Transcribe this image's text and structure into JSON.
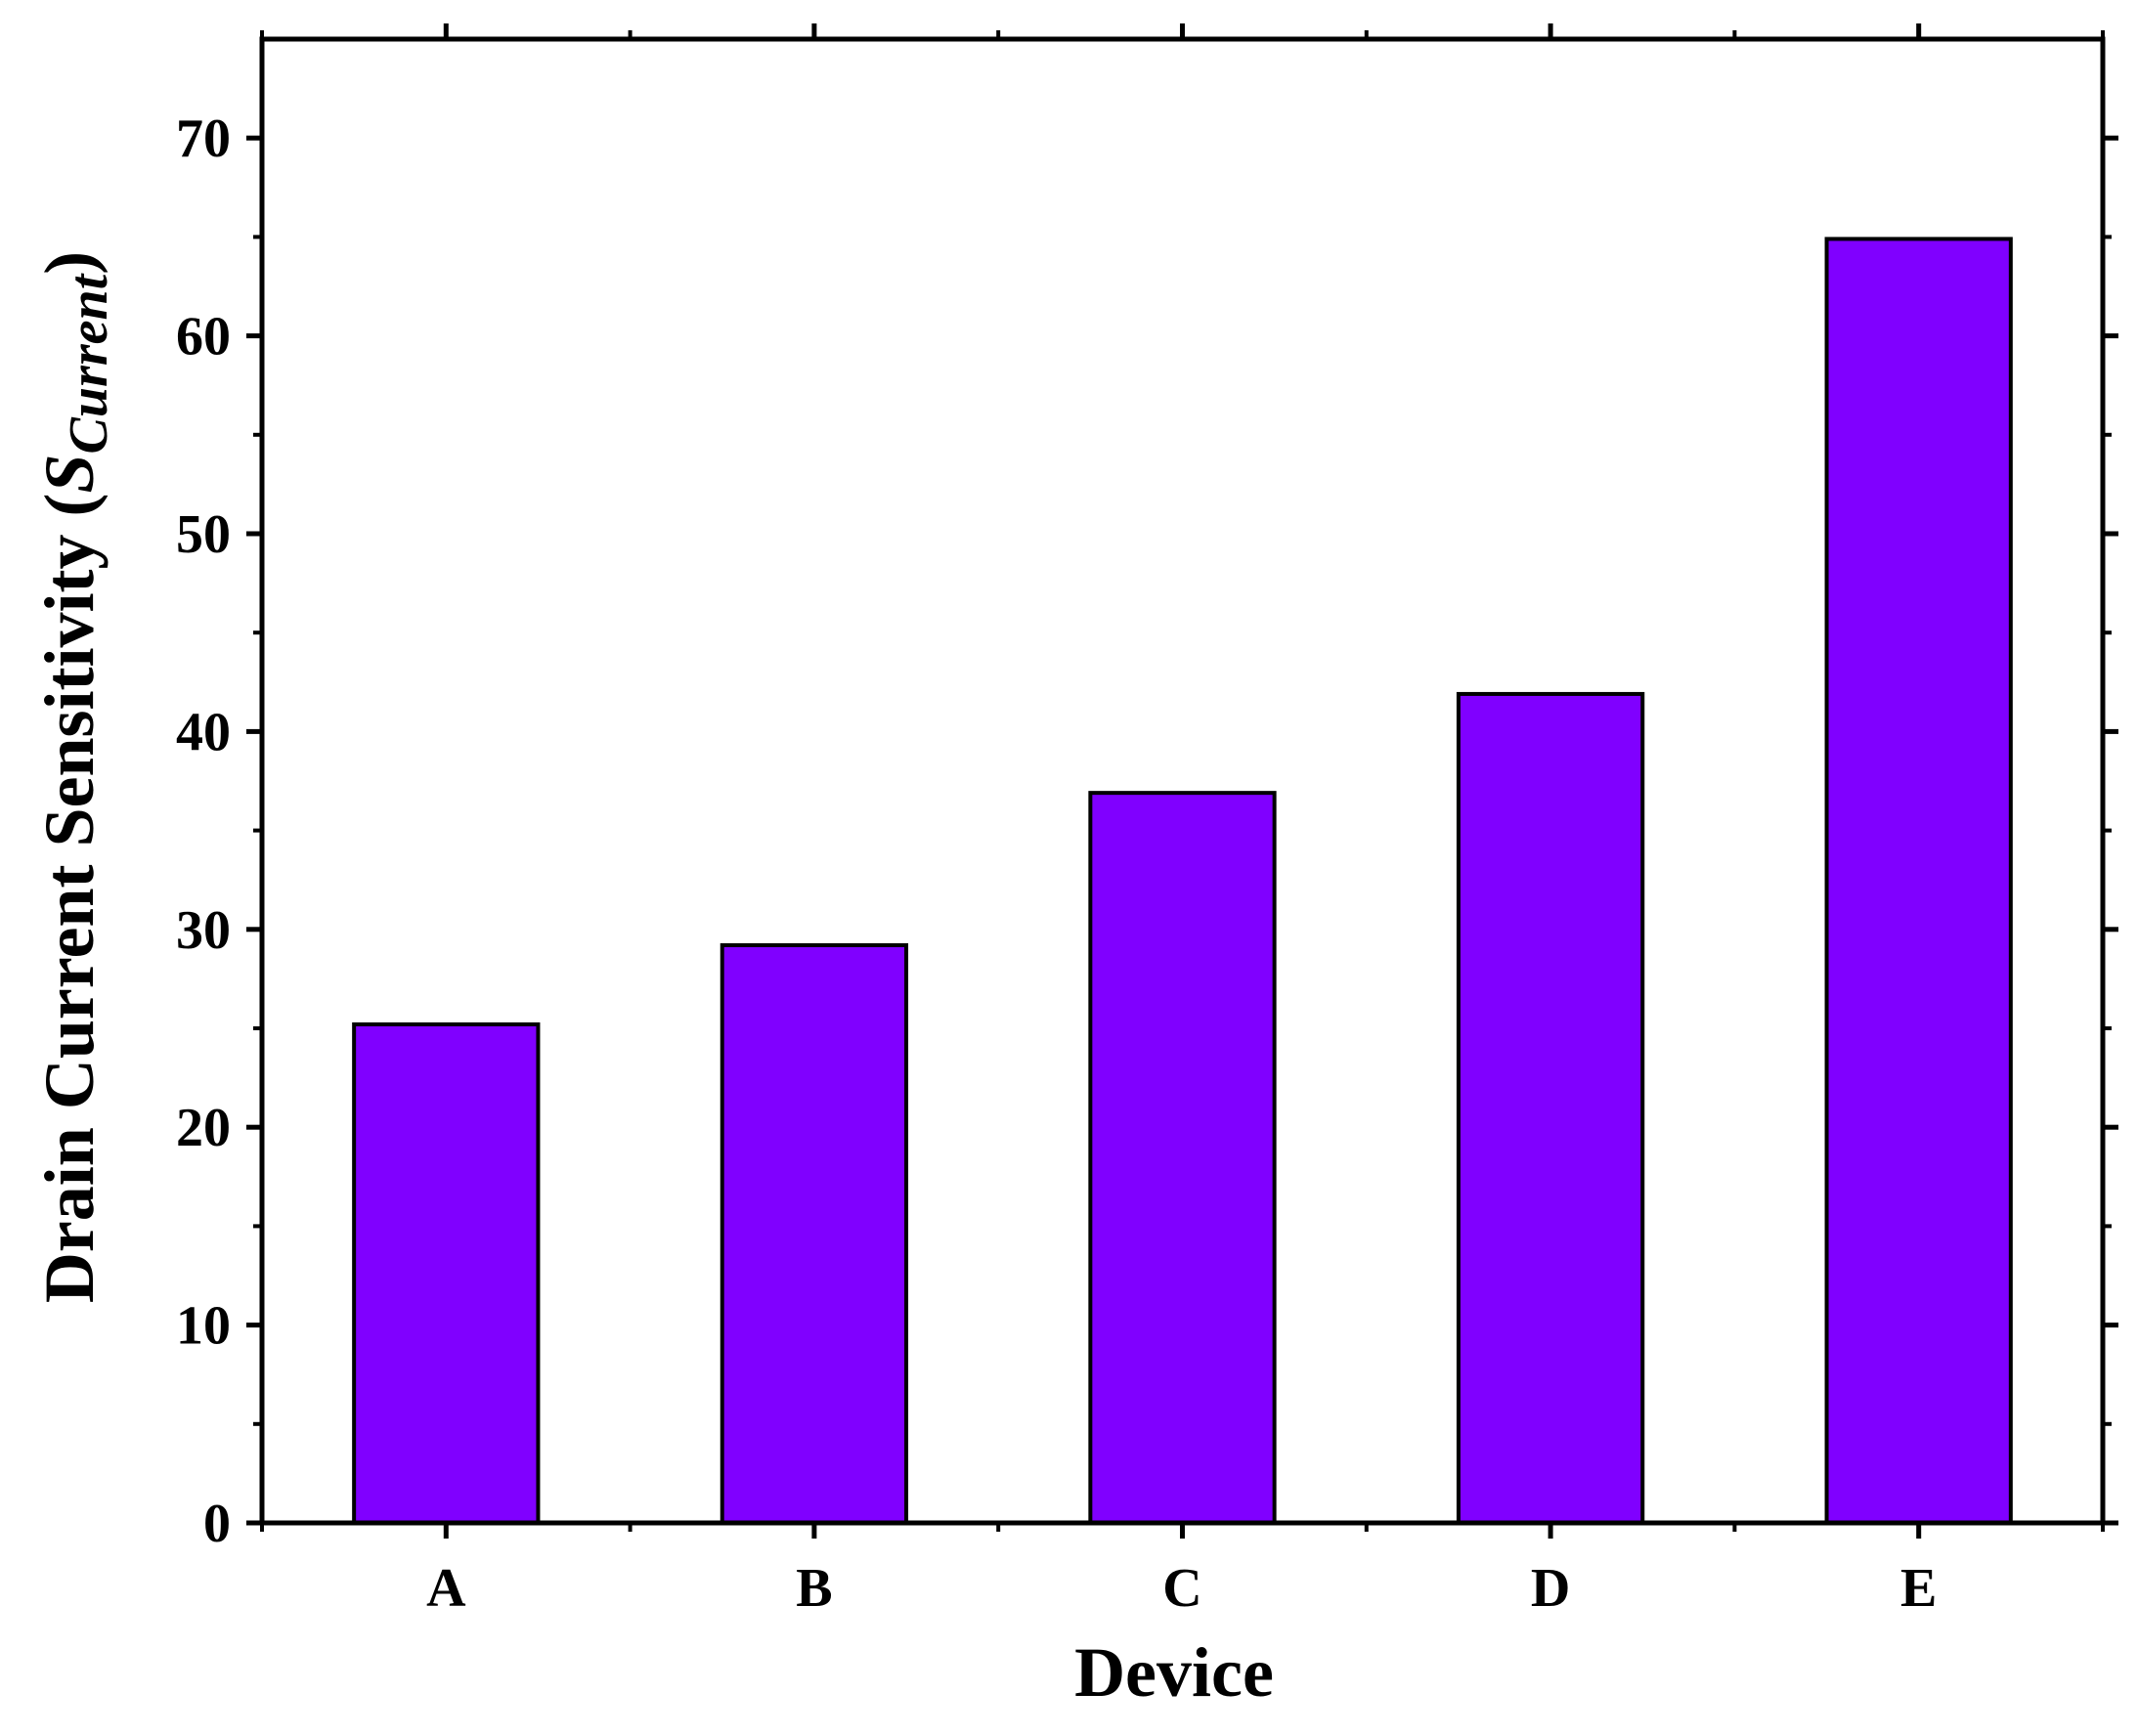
{
  "chart_data": {
    "type": "bar",
    "title": "",
    "xlabel": "Device",
    "ylabel_main": "Drain Current Sensitivity (",
    "ylabel_sym": "S",
    "ylabel_sub": "Current",
    "ylabel_close": ")",
    "categories": [
      "A",
      "B",
      "C",
      "D",
      "E"
    ],
    "values": [
      25.2,
      29.2,
      36.9,
      41.9,
      64.9
    ],
    "ylim": [
      0,
      75
    ],
    "yticks": [
      0,
      10,
      20,
      30,
      40,
      50,
      60,
      70
    ],
    "grid": false,
    "legend": "none",
    "colors": {
      "bar_fill": "#8000ff",
      "bar_stroke": "#000000",
      "axis": "#000000"
    }
  }
}
